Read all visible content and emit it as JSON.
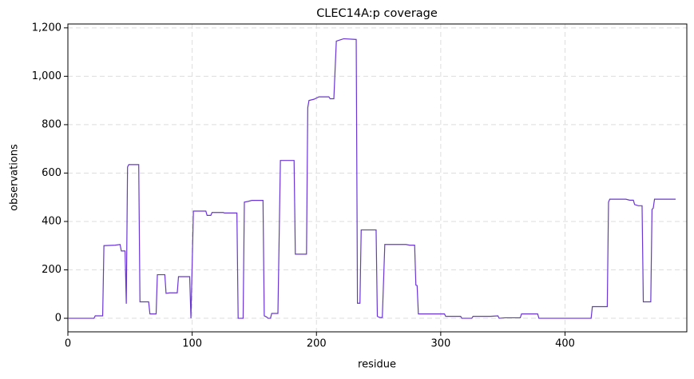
{
  "chart_data": {
    "type": "line",
    "title": "CLEC14A:p coverage",
    "x_label": "residue",
    "y_label": "observations",
    "x": [
      0,
      21,
      22,
      28,
      29,
      38,
      42,
      43,
      46,
      47,
      48,
      49,
      57,
      58,
      65,
      66,
      71,
      72,
      78,
      79,
      82,
      88,
      89,
      98,
      99,
      101,
      111,
      112,
      115,
      116,
      125,
      126,
      136,
      137,
      141,
      142,
      145,
      148,
      157,
      158,
      160,
      161,
      163,
      164,
      169,
      171,
      182,
      183,
      192,
      193,
      194,
      198,
      200,
      202,
      210,
      211,
      214,
      216,
      219,
      222,
      232,
      233,
      235,
      236,
      248,
      249,
      251,
      253,
      255,
      272,
      275,
      279,
      280,
      281,
      282,
      303,
      304,
      316,
      317,
      325,
      326,
      340,
      346,
      347,
      352,
      364,
      365,
      378,
      379,
      421,
      422,
      434,
      435,
      436,
      449,
      452,
      455,
      456,
      459,
      462,
      463,
      469,
      470,
      471,
      472,
      489
    ],
    "series": [
      {
        "name": "coverage",
        "color": "#6a35d5",
        "values": [
          0,
          0,
          10,
          10,
          300,
          302,
          305,
          278,
          278,
          60,
          625,
          635,
          635,
          68,
          68,
          18,
          18,
          180,
          180,
          103,
          105,
          105,
          172,
          172,
          0,
          443,
          443,
          425,
          425,
          437,
          437,
          435,
          435,
          0,
          0,
          480,
          483,
          487,
          487,
          10,
          5,
          0,
          0,
          20,
          20,
          652,
          652,
          265,
          265,
          870,
          900,
          905,
          910,
          915,
          915,
          907,
          907,
          1145,
          1150,
          1155,
          1152,
          62,
          62,
          365,
          365,
          8,
          3,
          3,
          305,
          305,
          302,
          302,
          137,
          135,
          18,
          18,
          8,
          8,
          0,
          0,
          8,
          8,
          10,
          0,
          2,
          2,
          18,
          18,
          0,
          0,
          48,
          48,
          480,
          492,
          492,
          488,
          488,
          470,
          465,
          465,
          68,
          68,
          450,
          455,
          492,
          492
        ]
      }
    ],
    "xlim": [
      0,
      498
    ],
    "ylim": [
      -56,
      1216
    ],
    "xticks": [
      0,
      100,
      200,
      300,
      400
    ],
    "yticks": [
      0,
      200,
      400,
      600,
      800,
      {
        "value": 1000,
        "label": "1,000"
      },
      {
        "value": 1200,
        "label": "1,200"
      }
    ],
    "grid": true
  }
}
